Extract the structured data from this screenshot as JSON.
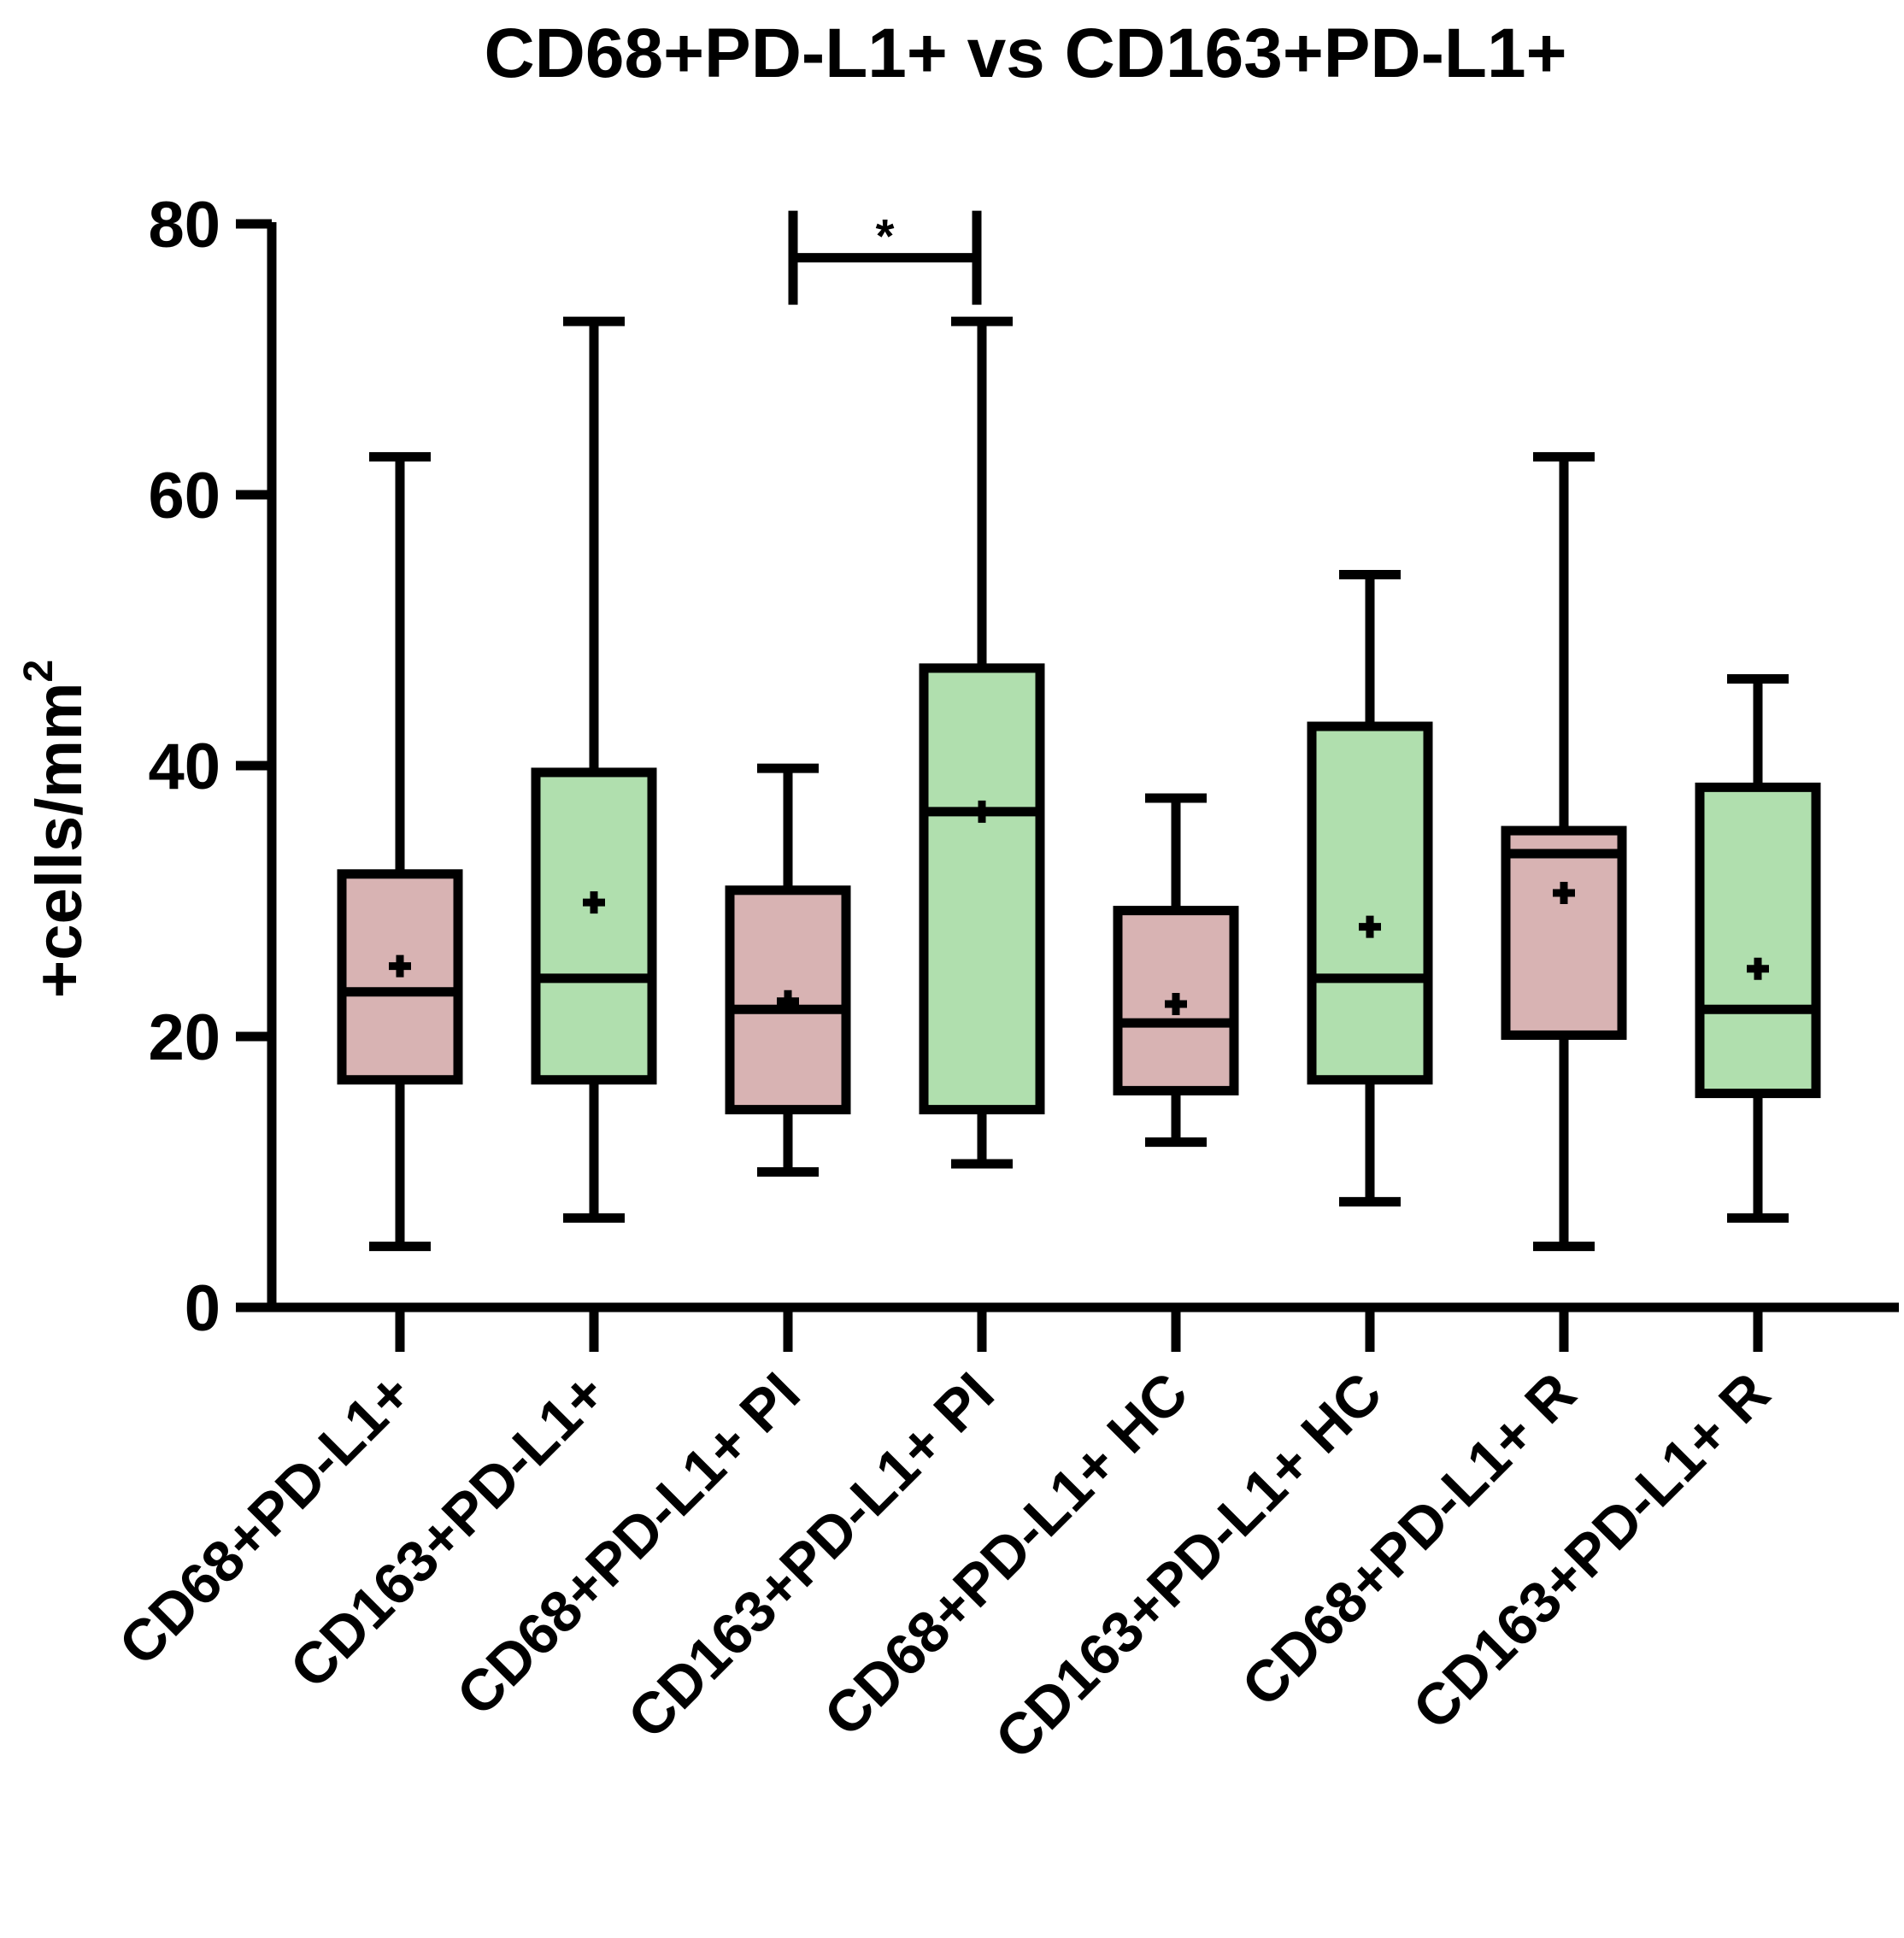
{
  "chart_data": {
    "type": "box",
    "title": "CD68+PD-L1+ vs CD163+PD-L1+",
    "ylabel": "+cells/mm",
    "ylabel_superscript": "2",
    "xlabel": "",
    "ylim": [
      0,
      80
    ],
    "yticks": [
      "0",
      "20",
      "40",
      "60",
      "80"
    ],
    "colors": {
      "CD68": "#d8b3b3",
      "CD163": "#b0dfae",
      "stroke": "#000000"
    },
    "categories": [
      "CD68+PD-L1+",
      "CD163+PD-L1+",
      "CD68+PD-L1+ PI",
      "CD163+PD-L1+ PI",
      "CD68+PD-L1+ HC",
      "CD163+PD-L1+ HC",
      "CD68+PD-L1+ R",
      "CD163+PD-L1+ R"
    ],
    "boxes": [
      {
        "group": "CD68",
        "min": 4.5,
        "q1": 16.8,
        "median": 23.3,
        "q3": 32.0,
        "max": 62.8,
        "mean": 25.2
      },
      {
        "group": "CD163",
        "min": 6.6,
        "q1": 16.8,
        "median": 24.3,
        "q3": 39.5,
        "max": 72.8,
        "mean": 29.9
      },
      {
        "group": "CD68",
        "min": 10.0,
        "q1": 14.6,
        "median": 22.0,
        "q3": 30.8,
        "max": 39.8,
        "mean": 22.6
      },
      {
        "group": "CD163",
        "min": 10.6,
        "q1": 14.6,
        "median": 36.6,
        "q3": 47.2,
        "max": 72.8,
        "mean": 36.6
      },
      {
        "group": "CD68",
        "min": 12.2,
        "q1": 16.0,
        "median": 21.0,
        "q3": 29.3,
        "max": 37.6,
        "mean": 22.4
      },
      {
        "group": "CD163",
        "min": 7.8,
        "q1": 16.8,
        "median": 24.3,
        "q3": 42.9,
        "max": 54.1,
        "mean": 28.1
      },
      {
        "group": "CD68",
        "min": 4.5,
        "q1": 20.1,
        "median": 33.5,
        "q3": 35.2,
        "max": 62.8,
        "mean": 30.6
      },
      {
        "group": "CD163",
        "min": 6.6,
        "q1": 15.8,
        "median": 22.0,
        "q3": 38.4,
        "max": 46.4,
        "mean": 25.0
      }
    ],
    "significance": [
      {
        "from": 2,
        "to": 3,
        "label": "*",
        "y": 77.5
      }
    ]
  }
}
